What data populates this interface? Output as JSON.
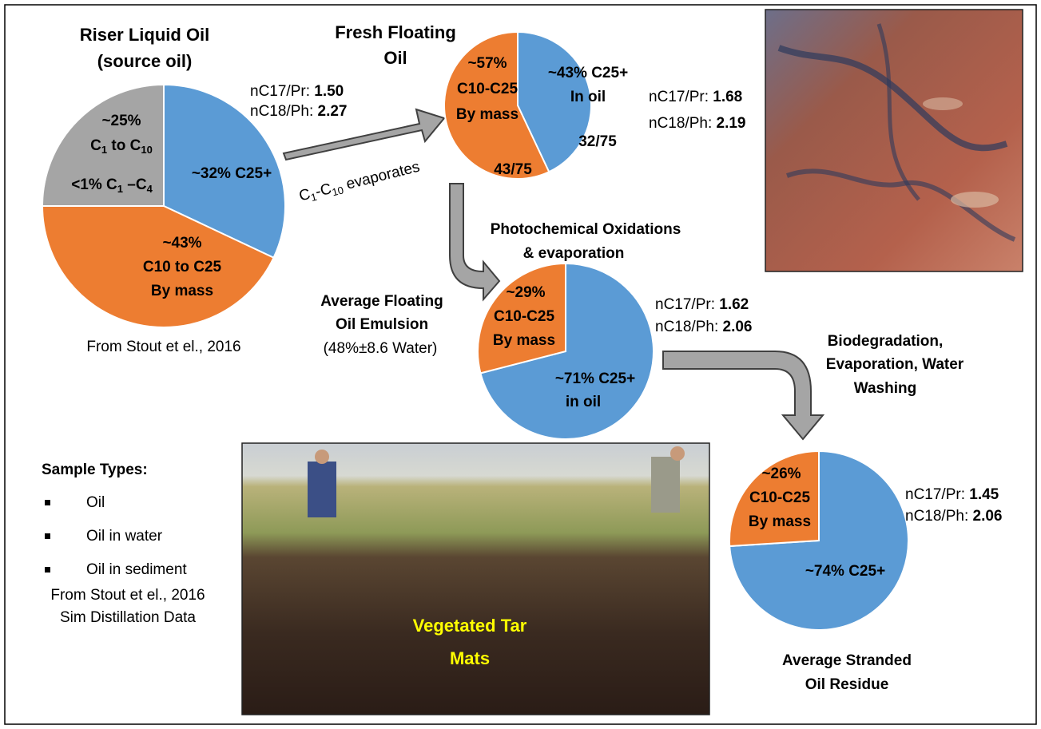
{
  "pies": [
    {
      "title": [
        "Riser Liquid Oil",
        "(source oil)"
      ],
      "slices": [
        {
          "value": 32,
          "color": "#5b9bd5",
          "lines": [
            "~32% C25+"
          ]
        },
        {
          "value": 43,
          "color": "#ed7d31",
          "lines": [
            "~43%",
            "C10 to C25",
            "By mass"
          ]
        },
        {
          "value": 25,
          "color": "#a5a5a5",
          "lines": [
            "~25%",
            [
              {
                "t": "C"
              },
              {
                "sub": "1"
              },
              {
                "t": " to C"
              },
              {
                "sub": "10"
              }
            ],
            [
              {
                "t": "<1% C"
              },
              {
                "sub": "1"
              },
              {
                "t": " –C"
              },
              {
                "sub": "4"
              }
            ]
          ]
        }
      ],
      "ratios": [
        {
          "name": "nC17/Pr: ",
          "value": "1.50"
        },
        {
          "name": "nC18/Ph: ",
          "value": "2.27"
        }
      ],
      "note": "From Stout et el., 2016"
    },
    {
      "title": [
        "Fresh Floating",
        "Oil"
      ],
      "slices": [
        {
          "value": 43,
          "color": "#5b9bd5",
          "lines": [
            "~43% C25+",
            "In oil",
            "32/75"
          ]
        },
        {
          "value": 57,
          "color": "#ed7d31",
          "lines": [
            "~57%",
            "C10-C25",
            "By mass",
            "43/75"
          ]
        }
      ],
      "ratios": [
        {
          "name": "nC17/Pr: ",
          "value": "1.68"
        },
        {
          "name": "nC18/Ph: ",
          "value": "2.19"
        }
      ]
    },
    {
      "title": [
        "Average Floating",
        "Oil Emulsion"
      ],
      "slices": [
        {
          "value": 71,
          "color": "#5b9bd5",
          "lines": [
            "~71% C25+",
            "in oil"
          ]
        },
        {
          "value": 29,
          "color": "#ed7d31",
          "lines": [
            "~29%",
            "C10-C25",
            "By mass"
          ]
        }
      ],
      "ratios": [
        {
          "name": "nC17/Pr: ",
          "value": "1.62"
        },
        {
          "name": "nC18/Ph: ",
          "value": "2.06"
        }
      ],
      "note": "(48%±8.6 Water)"
    },
    {
      "title": [
        "Average Stranded",
        "Oil Residue"
      ],
      "slices": [
        {
          "value": 74,
          "color": "#5b9bd5",
          "lines": [
            "~74% C25+"
          ]
        },
        {
          "value": 26,
          "color": "#ed7d31",
          "lines": [
            "~26%",
            "C10-C25",
            "By mass"
          ]
        }
      ],
      "ratios": [
        {
          "name": "nC17/Pr: ",
          "value": "1.45"
        },
        {
          "name": "nC18/Ph: ",
          "value": "2.06"
        }
      ]
    }
  ],
  "arrow_label": [
    {
      "t": "C"
    },
    {
      "sub": "1"
    },
    {
      "t": "-C"
    },
    {
      "sub": "10"
    },
    {
      "t": " evaporates"
    }
  ],
  "process_labels": [
    [
      "Photochemical  Oxidations",
      "& evaporation"
    ],
    [
      "Biodegradation,",
      "Evaporation,  Water",
      "Washing"
    ]
  ],
  "legend": {
    "title": "Sample Types:",
    "items": [
      "Oil",
      "Oil in water",
      "Oil in sediment"
    ],
    "notes": [
      "From Stout et el., 2016",
      "Sim Distillation Data"
    ]
  },
  "photo_caption": [
    "Vegetated Tar",
    "Mats"
  ]
}
